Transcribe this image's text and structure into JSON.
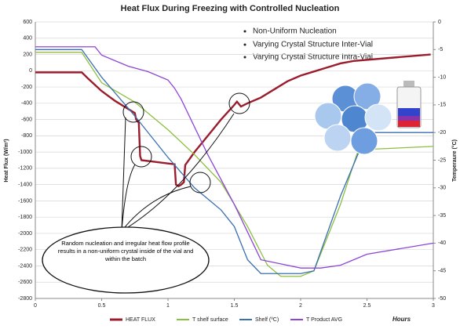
{
  "chart_data": {
    "type": "line",
    "title": "Heat Flux During Freezing with Controlled Nucleation",
    "xlabel": "Hours",
    "ylabel": "Heat Flux (W/m²)",
    "y2label": "Temperaure (°C)",
    "annotations": [
      "Non-Uniform Nucleation",
      "Varying Crystal Structure Inter-Vial",
      "Varying Crystal Structure Intra-Vial",
      "Random nucleation and irregular heat flow profile results in a non-uniform crystal inside of the vial and within the batch"
    ],
    "xlim": [
      0,
      3
    ],
    "xticks": [
      0,
      0.5,
      1,
      1.5,
      2,
      2.5,
      3
    ],
    "ylim": [
      -2800,
      600
    ],
    "yticks": [
      600,
      400,
      200,
      0,
      -200,
      -400,
      -600,
      -800,
      -1000,
      -1200,
      -1400,
      -1600,
      -1800,
      -2000,
      -2200,
      -2400,
      -2600,
      -2800
    ],
    "y2lim": [
      -50,
      0
    ],
    "y2ticks": [
      0,
      -5,
      -10,
      -15,
      -20,
      -25,
      -30,
      -35,
      -40,
      -45,
      -50
    ],
    "grid": true,
    "legend": "bottom",
    "series": [
      {
        "name": "HEAT FLUX",
        "color": "#9b1c2c",
        "axis": "y",
        "x": [
          0,
          0.35,
          0.4,
          0.5,
          0.6,
          0.7,
          0.75,
          0.76,
          0.78,
          0.79,
          0.8,
          0.9,
          1.0,
          1.05,
          1.06,
          1.08,
          1.1,
          1.12,
          1.13,
          1.2,
          1.3,
          1.4,
          1.5,
          1.52,
          1.55,
          1.6,
          1.7,
          1.8,
          1.9,
          2.0,
          2.1,
          2.2,
          2.3,
          2.4,
          2.98
        ],
        "values": [
          -20,
          -20,
          -100,
          -250,
          -370,
          -470,
          -520,
          -600,
          -640,
          -1050,
          -1100,
          -1120,
          -1140,
          -1150,
          -1400,
          -1420,
          -1400,
          -1370,
          -1160,
          -1000,
          -800,
          -600,
          -420,
          -380,
          -440,
          -400,
          -330,
          -230,
          -130,
          -60,
          -10,
          40,
          90,
          120,
          200
        ]
      },
      {
        "name": "T shelf surface",
        "color": "#8cbf3f",
        "axis": "y2",
        "x": [
          0,
          0.35,
          0.5,
          0.75,
          1.0,
          1.2,
          1.4,
          1.6,
          1.75,
          1.85,
          2.0,
          2.1,
          2.3,
          2.45,
          2.55,
          3.0
        ],
        "values": [
          -5.5,
          -5.5,
          -11,
          -14.5,
          -19.5,
          -24,
          -29,
          -37,
          -44,
          -46,
          -46,
          -45,
          -33,
          -22,
          -23,
          -22.5
        ]
      },
      {
        "name": "Shelf (ºC)",
        "color": "#3a6fb0",
        "axis": "y2",
        "x": [
          0,
          0.35,
          0.5,
          0.75,
          1.0,
          1.2,
          1.4,
          1.5,
          1.6,
          1.7,
          2.0,
          2.1,
          2.3,
          2.5,
          3.0
        ],
        "values": [
          -5,
          -5,
          -10,
          -17,
          -24.5,
          -30,
          -34,
          -37,
          -43,
          -45.5,
          -45.5,
          -45,
          -31.5,
          -20,
          -20
        ]
      },
      {
        "name": "T Product AVG",
        "color": "#8e44d6",
        "axis": "y2",
        "x": [
          0,
          0.45,
          0.5,
          0.7,
          0.85,
          1.0,
          1.05,
          1.1,
          1.3,
          1.5,
          1.7,
          2.0,
          2.15,
          2.3,
          2.5,
          3.0
        ],
        "values": [
          -4.5,
          -4.5,
          -6,
          -8,
          -9,
          -10.5,
          -12,
          -14,
          -24,
          -33,
          -43,
          -44.5,
          -44.5,
          -44,
          -42,
          -40
        ]
      }
    ]
  }
}
